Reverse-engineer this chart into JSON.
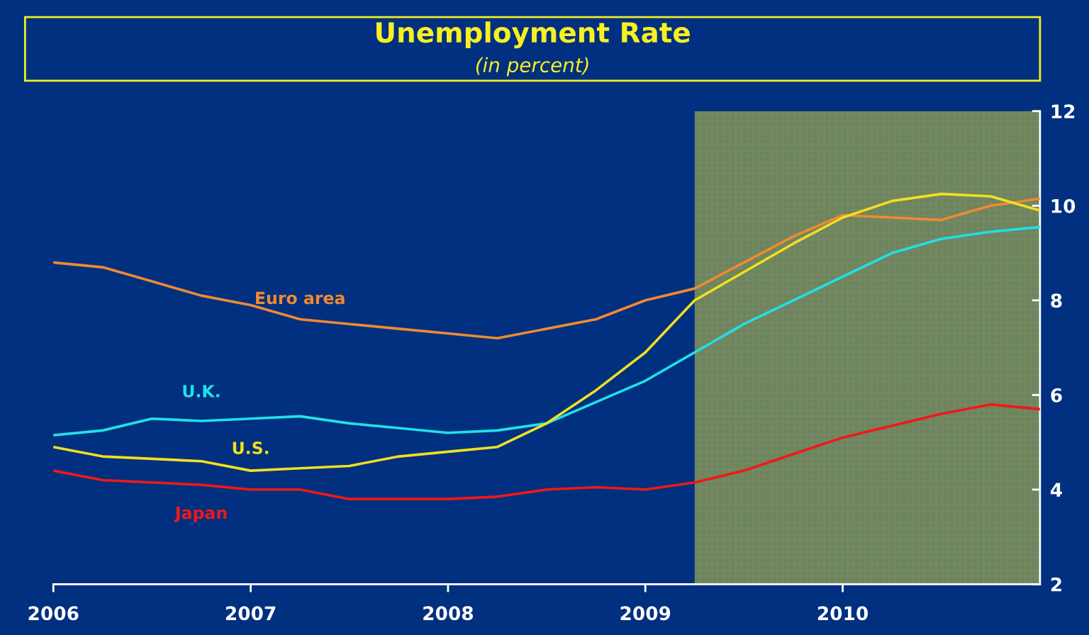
{
  "chart_data": {
    "type": "line",
    "title": "Unemployment Rate",
    "subtitle": "(in percent)",
    "x": [
      2006,
      2006.25,
      2006.5,
      2006.75,
      2007,
      2007.25,
      2007.5,
      2007.75,
      2008,
      2008.25,
      2008.5,
      2008.75,
      2009,
      2009.25,
      2009.5,
      2009.75,
      2010,
      2010.25,
      2010.5,
      2010.75,
      2011
    ],
    "series": [
      {
        "name": "Euro area",
        "color": "#f08a30",
        "values": [
          8.8,
          8.7,
          8.4,
          8.1,
          7.9,
          7.6,
          7.5,
          7.4,
          7.3,
          7.2,
          7.4,
          7.6,
          8.0,
          8.25,
          8.8,
          9.35,
          9.8,
          9.75,
          9.7,
          10.0,
          10.15
        ]
      },
      {
        "name": "U.K.",
        "color": "#20e0e8",
        "values": [
          5.15,
          5.25,
          5.5,
          5.45,
          5.5,
          5.55,
          5.4,
          5.3,
          5.2,
          5.25,
          5.4,
          5.85,
          6.3,
          6.9,
          7.5,
          8.0,
          8.5,
          9.0,
          9.3,
          9.45,
          9.55
        ]
      },
      {
        "name": "U.S.",
        "color": "#f0e020",
        "values": [
          4.9,
          4.7,
          4.65,
          4.6,
          4.4,
          4.45,
          4.5,
          4.7,
          4.8,
          4.9,
          5.4,
          6.1,
          6.9,
          8.0,
          8.6,
          9.2,
          9.75,
          10.1,
          10.25,
          10.2,
          9.9
        ]
      },
      {
        "name": "Japan",
        "color": "#f01818",
        "values": [
          4.4,
          4.2,
          4.15,
          4.1,
          4.0,
          4.0,
          3.8,
          3.8,
          3.8,
          3.85,
          4.0,
          4.05,
          4.0,
          4.15,
          4.4,
          4.75,
          5.1,
          5.35,
          5.6,
          5.8,
          5.7
        ]
      }
    ],
    "xlim": [
      2006,
      2011
    ],
    "xticks": [
      2006,
      2007,
      2008,
      2009,
      2010
    ],
    "ylim": [
      2,
      12
    ],
    "yticks": [
      2,
      4,
      6,
      8,
      10,
      12
    ],
    "bands": [
      {
        "axis": "x",
        "from": 2009.25,
        "to": 2011,
        "color": "#c8c840"
      }
    ],
    "grid": false,
    "legend": false
  }
}
